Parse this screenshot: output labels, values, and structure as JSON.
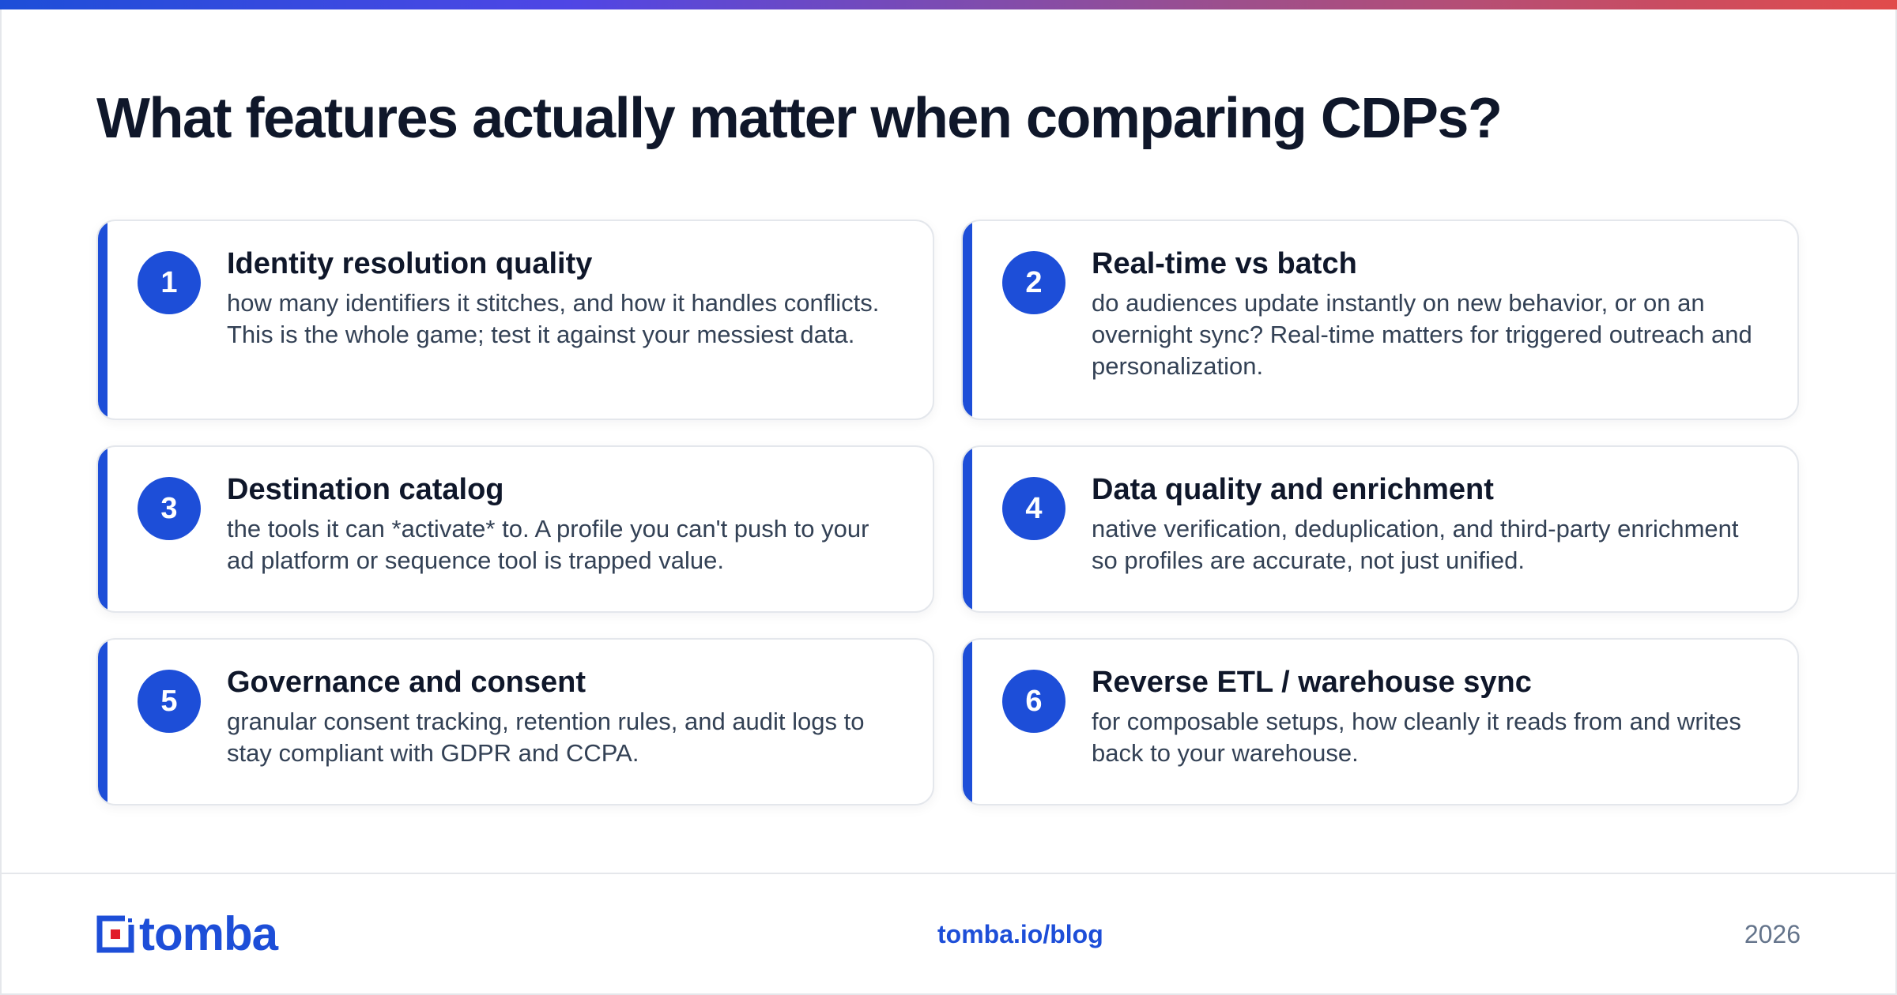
{
  "title": "What features actually matter when comparing CDPs?",
  "accent_color": "#1d4ed8",
  "features": [
    {
      "number": "1",
      "title": "Identity resolution quality",
      "description": "how many identifiers it stitches, and how it handles conflicts. This is the whole game; test it against your messiest data."
    },
    {
      "number": "2",
      "title": "Real-time vs batch",
      "description": "do audiences update instantly on new behavior, or on an overnight sync? Real-time matters for triggered outreach and personalization."
    },
    {
      "number": "3",
      "title": "Destination catalog",
      "description": "the tools it can *activate* to. A profile you can't push to your ad platform or sequence tool is trapped value."
    },
    {
      "number": "4",
      "title": "Data quality and enrichment",
      "description": "native verification, deduplication, and third-party enrichment so profiles are accurate, not just unified."
    },
    {
      "number": "5",
      "title": "Governance and consent",
      "description": "granular consent tracking, retention rules, and audit logs to stay compliant with GDPR and CCPA."
    },
    {
      "number": "6",
      "title": "Reverse ETL / warehouse sync",
      "description": "for composable setups, how cleanly it reads from and writes back to your warehouse."
    }
  ],
  "footer": {
    "logo_text": "tomba",
    "link": "tomba.io/blog",
    "year": "2026"
  }
}
